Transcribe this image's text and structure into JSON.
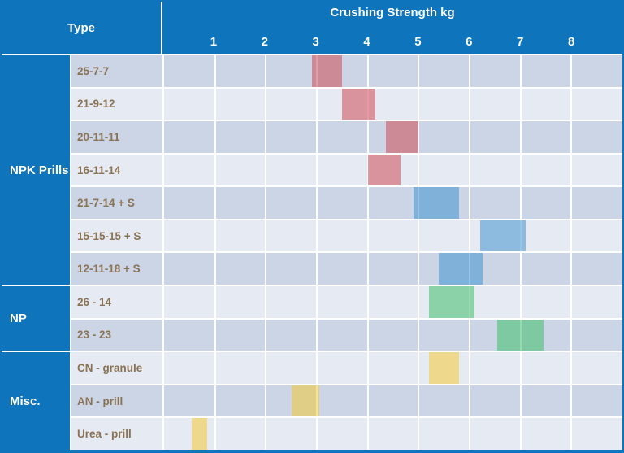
{
  "header": {
    "type_label": "Type",
    "title": "Crushing Strength kg"
  },
  "colors": {
    "header_bg": "#0e74bb",
    "border": "#0e74bb",
    "row_dark": "#cbd5e5",
    "row_light": "#e6eaf2",
    "label_text": "#8a7355",
    "bar_red": "rgba(205,75,85,0.55)",
    "bar_blue": "rgba(65,147,207,0.55)",
    "bar_green": "rgba(63,189,107,0.55)",
    "bar_yellow": "rgba(244,200,56,0.55)"
  },
  "chart_data": {
    "type": "bar",
    "subtype": "horizontal-range",
    "title": "Crushing Strength kg",
    "xlabel": "Crushing Strength kg",
    "ylabel": "Type",
    "xlim": [
      0,
      9
    ],
    "x_ticks": [
      1,
      2,
      3,
      4,
      5,
      6,
      7,
      8
    ],
    "grid": true,
    "groups": [
      {
        "name": "NPK Prills",
        "rows": [
          {
            "label": "25-7-7",
            "min": 2.9,
            "max": 3.5,
            "color": "red"
          },
          {
            "label": "21-9-12",
            "min": 3.5,
            "max": 4.15,
            "color": "red"
          },
          {
            "label": "20-11-11",
            "min": 4.35,
            "max": 5.0,
            "color": "red"
          },
          {
            "label": "16-11-14",
            "min": 4.0,
            "max": 4.65,
            "color": "red"
          },
          {
            "label": "21-7-14 + S",
            "min": 4.9,
            "max": 5.8,
            "color": "blue"
          },
          {
            "label": "15-15-15 + S",
            "min": 6.2,
            "max": 7.1,
            "color": "blue"
          },
          {
            "label": "12-11-18 + S",
            "min": 5.4,
            "max": 6.25,
            "color": "blue"
          }
        ]
      },
      {
        "name": "NP",
        "rows": [
          {
            "label": "26 - 14",
            "min": 5.2,
            "max": 6.1,
            "color": "green"
          },
          {
            "label": "23 - 23",
            "min": 6.55,
            "max": 7.45,
            "color": "green"
          }
        ]
      },
      {
        "name": "Misc.",
        "rows": [
          {
            "label": "CN - granule",
            "min": 5.2,
            "max": 5.8,
            "color": "yellow"
          },
          {
            "label": "AN - prill",
            "min": 2.5,
            "max": 3.05,
            "color": "yellow"
          },
          {
            "label": "Urea - prill",
            "min": 0.55,
            "max": 0.85,
            "color": "yellow"
          }
        ]
      }
    ]
  }
}
